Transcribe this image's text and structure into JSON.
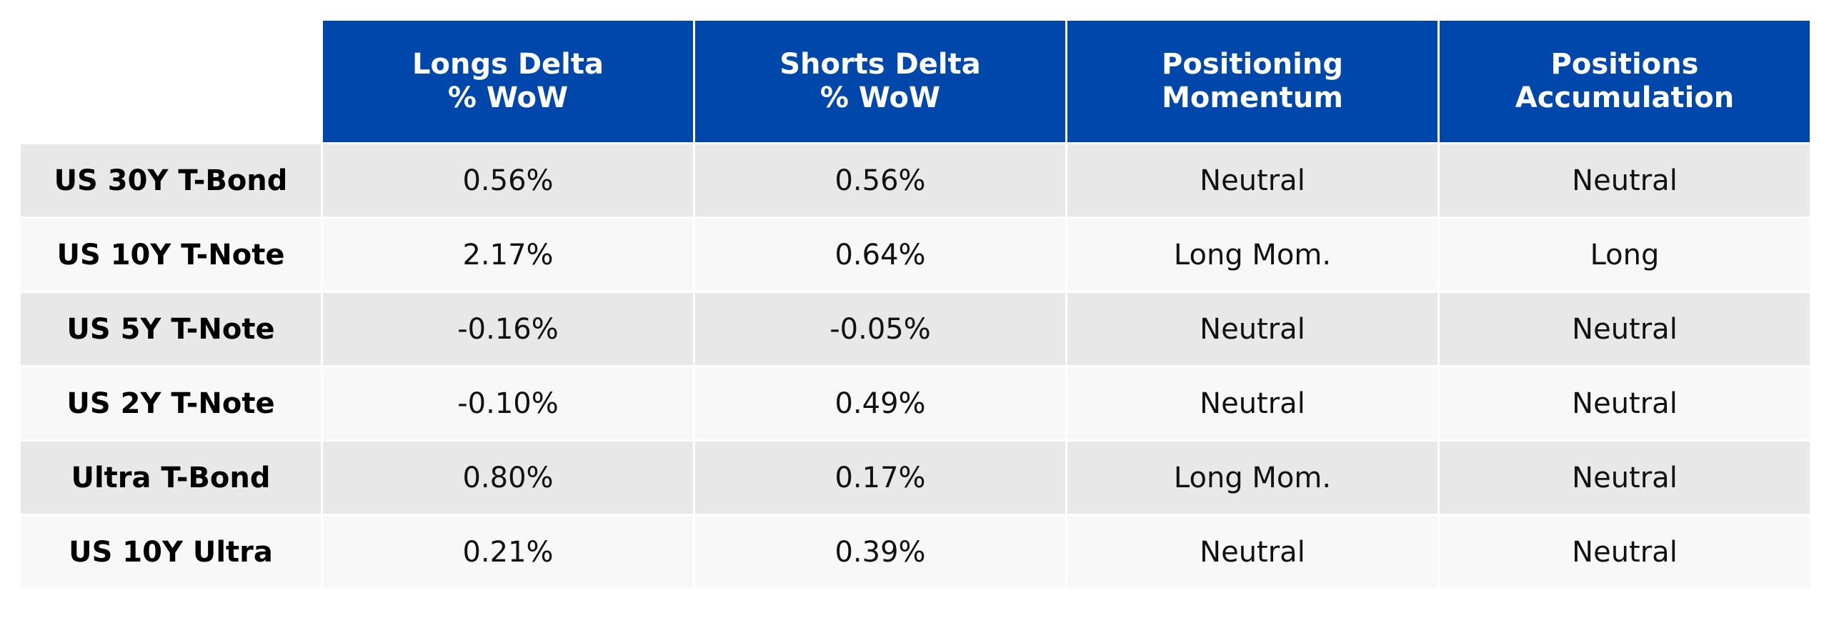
{
  "chart_data": {
    "type": "table",
    "columns": [
      {
        "line1": "Longs Delta",
        "line2": "% WoW"
      },
      {
        "line1": "Shorts Delta",
        "line2": "% WoW"
      },
      {
        "line1": "Positioning",
        "line2": "Momentum"
      },
      {
        "line1": "Positions",
        "line2": "Accumulation"
      }
    ],
    "rows": [
      {
        "label": "US 30Y T-Bond",
        "cells": [
          "0.56%",
          "0.56%",
          "Neutral",
          "Neutral"
        ]
      },
      {
        "label": "US 10Y T-Note",
        "cells": [
          "2.17%",
          "0.64%",
          "Long Mom.",
          "Long"
        ]
      },
      {
        "label": "US 5Y T-Note",
        "cells": [
          "-0.16%",
          "-0.05%",
          "Neutral",
          "Neutral"
        ]
      },
      {
        "label": "US 2Y T-Note",
        "cells": [
          "-0.10%",
          "0.49%",
          "Neutral",
          "Neutral"
        ]
      },
      {
        "label": "Ultra T-Bond",
        "cells": [
          "0.80%",
          "0.17%",
          "Long Mom.",
          "Neutral"
        ]
      },
      {
        "label": "US 10Y Ultra",
        "cells": [
          "0.21%",
          "0.39%",
          "Neutral",
          "Neutral"
        ]
      }
    ],
    "colors": {
      "header_background": "#0047ab",
      "header_text": "#ffffff",
      "row_odd_background": "#e8e8e8",
      "row_even_background": "#f8f8f8"
    }
  }
}
